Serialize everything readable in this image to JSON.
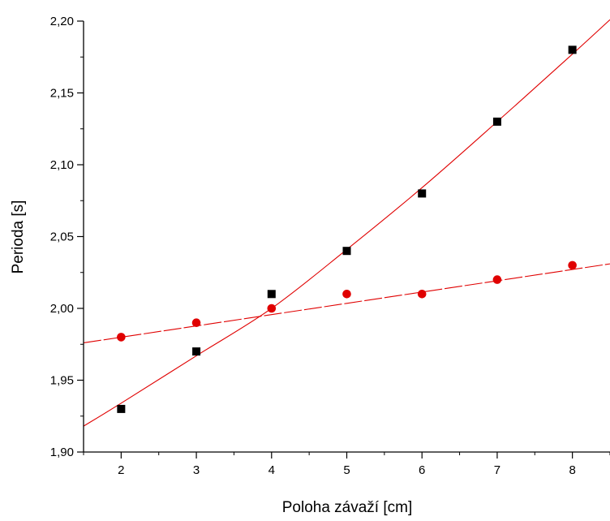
{
  "chart_data": {
    "type": "scatter",
    "title": "",
    "xlabel": "Poloha závaží [cm]",
    "ylabel": "Perioda [s]",
    "xlim": [
      1.5,
      8.5
    ],
    "ylim": [
      1.9,
      2.2
    ],
    "x_ticks": [
      2,
      3,
      4,
      5,
      6,
      7,
      8
    ],
    "x_tick_labels": [
      "2",
      "3",
      "4",
      "5",
      "6",
      "7",
      "8"
    ],
    "y_ticks": [
      1.9,
      1.95,
      2.0,
      2.05,
      2.1,
      2.15,
      2.2
    ],
    "y_tick_labels": [
      "1,90",
      "1,95",
      "2,00",
      "2,05",
      "2,10",
      "2,15",
      "2,20"
    ],
    "grid": false,
    "legend": "none",
    "series": [
      {
        "marker": "square",
        "color": "#000000",
        "x": [
          2,
          3,
          4,
          5,
          6,
          7,
          8
        ],
        "y": [
          1.93,
          1.97,
          2.01,
          2.04,
          2.08,
          2.13,
          2.18
        ]
      },
      {
        "marker": "circle",
        "color": "#e00000",
        "x": [
          2,
          3,
          4,
          5,
          6,
          7,
          8
        ],
        "y": [
          1.98,
          1.99,
          2.0,
          2.01,
          2.01,
          2.02,
          2.03
        ]
      }
    ],
    "fit_lines": [
      {
        "color": "#e00000",
        "style": "solid",
        "x": [
          1.5,
          2,
          3,
          4,
          5,
          6,
          7,
          8,
          8.5
        ],
        "y": [
          1.918,
          1.934,
          1.967,
          2.0,
          2.041,
          2.084,
          2.13,
          2.177,
          2.201
        ]
      },
      {
        "color": "#e00000",
        "style": "dashed",
        "x": [
          1.5,
          8.5
        ],
        "y": [
          1.976,
          2.031
        ]
      }
    ]
  }
}
